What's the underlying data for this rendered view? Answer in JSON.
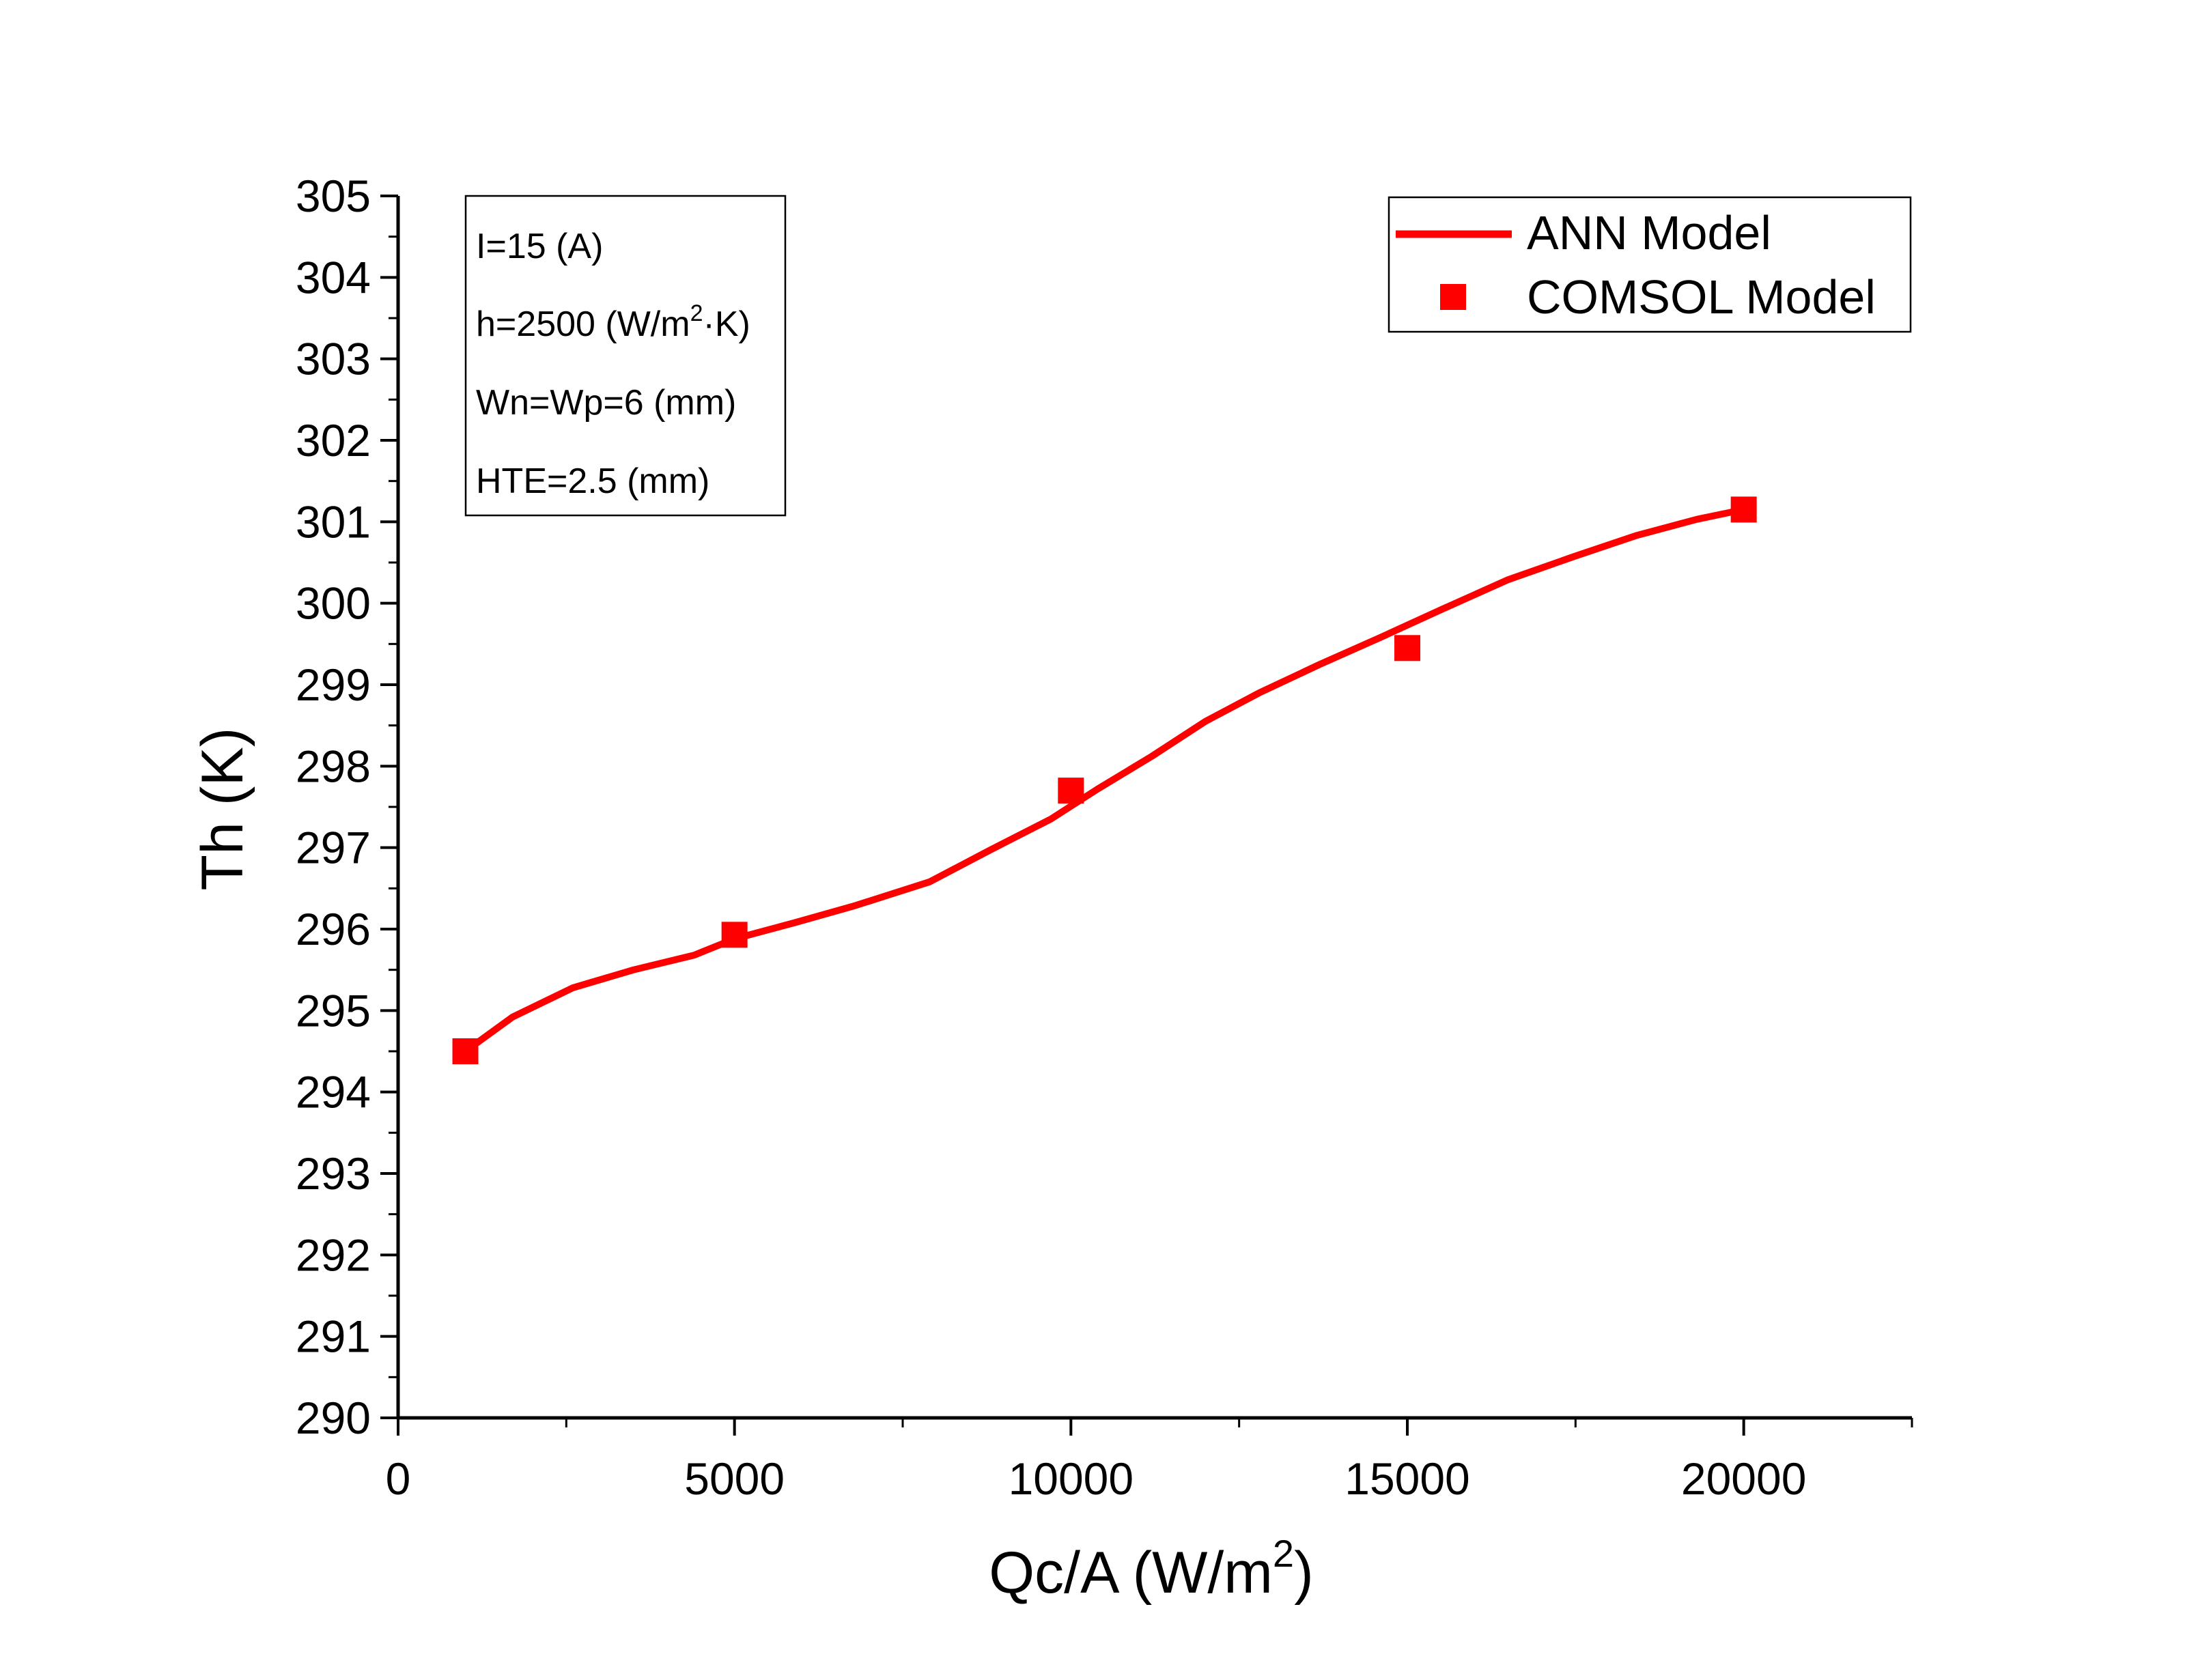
{
  "chart_data": {
    "type": "line",
    "xlabel": "Qc/A (W/m",
    "xlabel_sup": "2",
    "xlabel_end": ")",
    "ylabel": "Th (K)",
    "xlim": [
      0,
      22500
    ],
    "ylim": [
      290,
      305
    ],
    "x_ticks": [
      0,
      5000,
      10000,
      15000,
      20000
    ],
    "x_tick_labels": [
      "0",
      "5000",
      "10000",
      "15000",
      "20000"
    ],
    "y_ticks": [
      290,
      291,
      292,
      293,
      294,
      295,
      296,
      297,
      298,
      299,
      300,
      301,
      302,
      303,
      304,
      305
    ],
    "y_tick_labels": [
      "290",
      "291",
      "292",
      "293",
      "294",
      "295",
      "296",
      "297",
      "298",
      "299",
      "300",
      "301",
      "302",
      "303",
      "304",
      "305"
    ],
    "grid": false,
    "legend_position": "top-right",
    "series": [
      {
        "name": "ANN Model",
        "type": "line",
        "color": "#ff0000",
        "x": [
          1000,
          1700,
          2600,
          3500,
          4400,
          5000,
          5900,
          6800,
          7900,
          8800,
          9700,
          10400,
          11200,
          12000,
          12800,
          13700,
          14600,
          15500,
          16500,
          17500,
          18400,
          19300,
          20000
        ],
        "y": [
          294.5,
          294.92,
          295.28,
          295.5,
          295.68,
          295.88,
          296.08,
          296.29,
          296.58,
          296.97,
          297.35,
          297.72,
          298.12,
          298.55,
          298.9,
          299.25,
          299.58,
          299.92,
          300.29,
          300.58,
          300.83,
          301.03,
          301.15
        ]
      },
      {
        "name": "COMSOL Model",
        "type": "scatter",
        "marker": "square",
        "color": "#ff0000",
        "x": [
          1000,
          5000,
          10000,
          15000,
          20000
        ],
        "y": [
          294.5,
          295.93,
          297.7,
          299.45,
          301.15
        ]
      }
    ],
    "annotation": {
      "lines": [
        {
          "text": "I=15 (A)"
        },
        {
          "text": "h=2500 (W/m",
          "sup": "2",
          "tail": "·K)"
        },
        {
          "text": "Wn=Wp=6 (mm)"
        },
        {
          "text": "HTE=2.5 (mm)"
        }
      ]
    }
  }
}
